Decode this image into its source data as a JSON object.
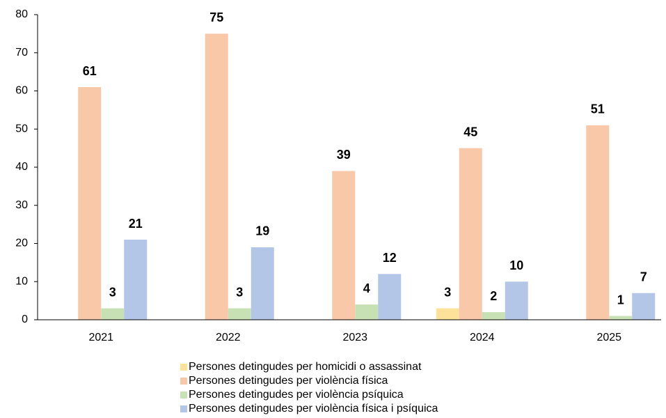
{
  "chart_data": {
    "type": "bar",
    "categories": [
      "2021",
      "2022",
      "2023",
      "2024",
      "2025"
    ],
    "series": [
      {
        "name": "Persones detingudes per homicidi o assassinat",
        "color": "#fde39a",
        "values": [
          null,
          null,
          null,
          3,
          null
        ]
      },
      {
        "name": "Persones detingudes per violència física",
        "color": "#f8c8a9",
        "values": [
          61,
          75,
          39,
          45,
          51
        ]
      },
      {
        "name": "Persones detingudes per violència psíquica",
        "color": "#c7e1b5",
        "values": [
          3,
          3,
          4,
          2,
          1
        ]
      },
      {
        "name": "Persones detingudes per violència física i psíquica",
        "color": "#b3c6e8",
        "values": [
          21,
          19,
          12,
          10,
          7
        ]
      }
    ],
    "ylim": [
      0,
      80
    ],
    "yticks": [
      0,
      10,
      20,
      30,
      40,
      50,
      60,
      70,
      80
    ],
    "grid": false,
    "legend": "bottom"
  }
}
